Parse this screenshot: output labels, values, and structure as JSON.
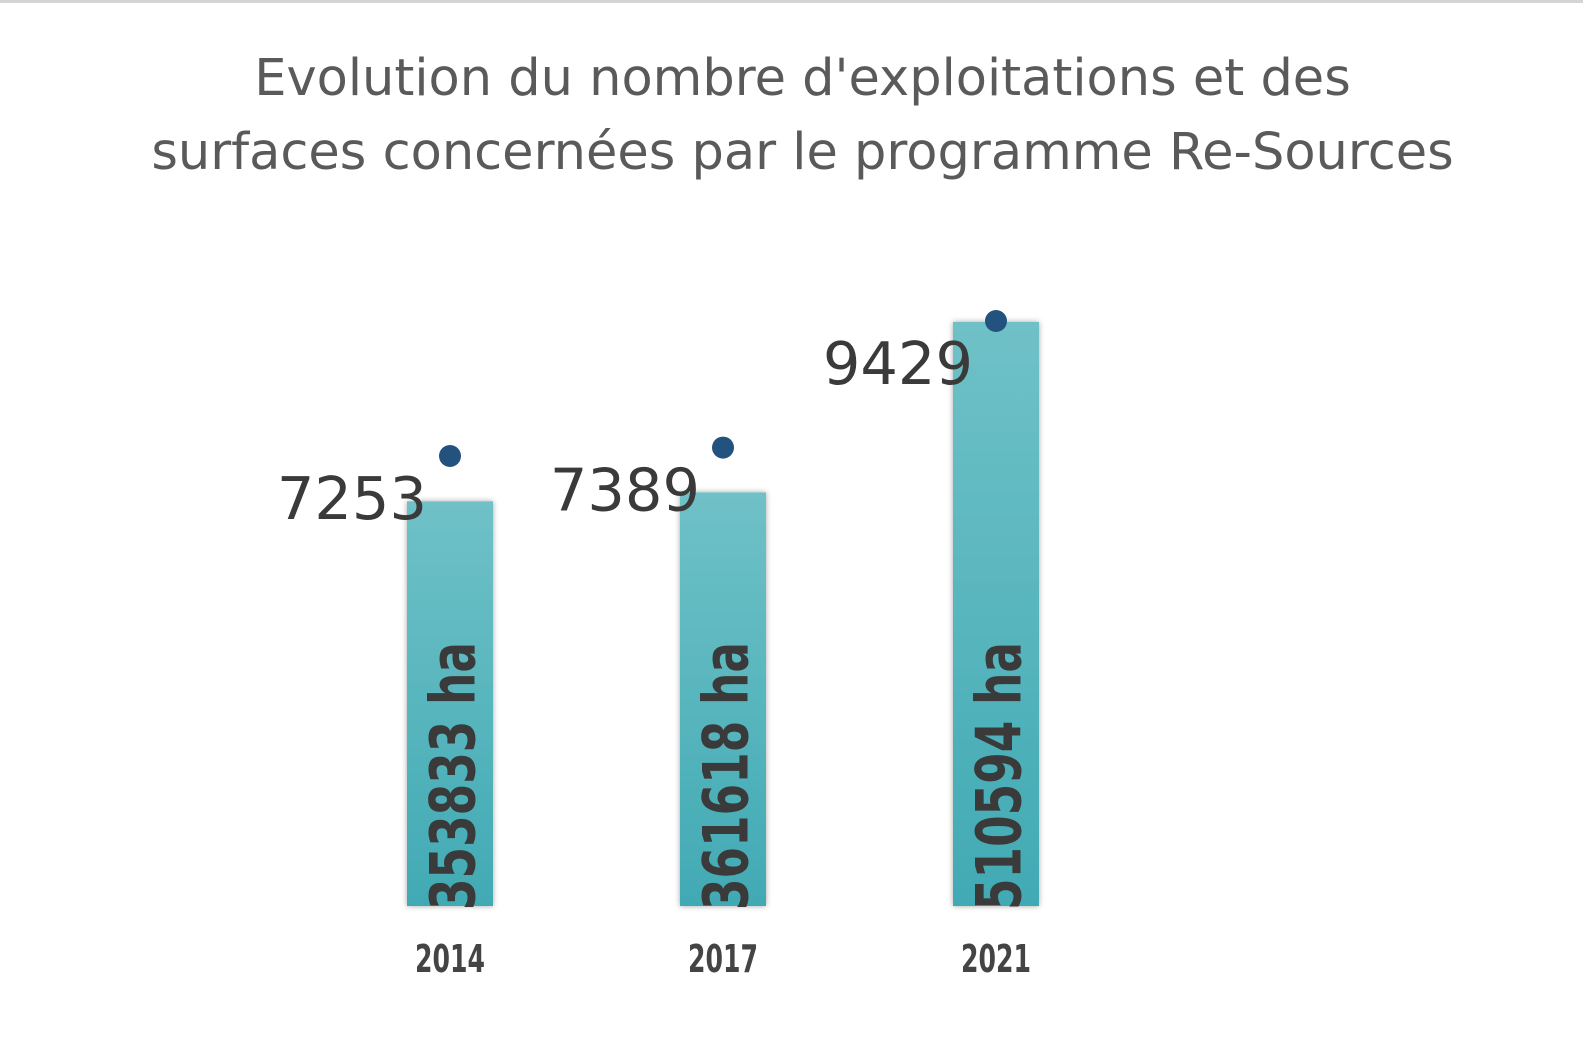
{
  "chart_data": {
    "type": "bar",
    "title_lines": [
      "Evolution du nombre d'exploitations et des",
      "surfaces concernées par le programme Re-Sources"
    ],
    "categories": [
      "2014",
      "2017",
      "2021"
    ],
    "series": [
      {
        "unit": "ha",
        "values": [
          353833,
          361618,
          510594
        ],
        "labels": [
          "353833 ha",
          "361618 ha",
          "510594 ha"
        ]
      },
      {
        "values": [
          7253,
          7389,
          9429
        ],
        "labels": [
          "7253",
          "7389",
          "9429"
        ]
      }
    ],
    "xlabel": "",
    "ylabel": "",
    "grid": false,
    "legend": "none",
    "colors": {
      "bar_top": "#6fc1c7",
      "bar_bottom": "#41aab4",
      "marker": "#24527e",
      "value_text": "#3a3a3a",
      "bar_label_text": "#3a3a3a",
      "tick_text": "#444444",
      "title_text": "#5a5a5a"
    }
  }
}
